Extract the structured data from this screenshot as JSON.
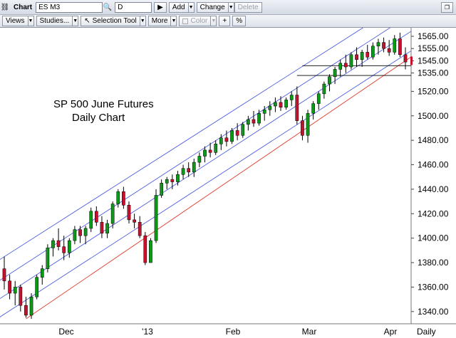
{
  "toolbar": {
    "chart_label": "Chart",
    "symbol": "ES M3",
    "period": "D",
    "add_label": "Add",
    "change_label": "Change",
    "delete_label": "Delete",
    "views_label": "Views",
    "studies_label": "Studies...",
    "selection_tool_label": "Selection Tool",
    "more_label": "More",
    "color_label": "Color",
    "plus_label": "+",
    "percent_label": "%"
  },
  "chart_data": {
    "type": "candlestick",
    "annotation": [
      "SP 500 June Futures",
      "Daily Chart"
    ],
    "period_label": "Daily",
    "x_labels": [
      "Dec",
      "'13",
      "Feb",
      "Mar",
      "Apr"
    ],
    "y_ticks": [
      1340,
      1360,
      1380,
      1400,
      1420,
      1440,
      1460,
      1480,
      1500,
      1520
    ],
    "y_ticks_fine": [
      1535,
      1545,
      1555,
      1565
    ],
    "ylim": [
      1330,
      1572
    ],
    "price_marker": 1545,
    "colors": {
      "up": "#0a9b16",
      "down": "#c8102e",
      "channel": "#3b4de0",
      "support": "#e03a2a",
      "resistance": "#000000"
    },
    "ohlc": [
      [
        1375,
        1385,
        1358,
        1365
      ],
      [
        1365,
        1370,
        1350,
        1355
      ],
      [
        1355,
        1365,
        1345,
        1360
      ],
      [
        1360,
        1362,
        1340,
        1345
      ],
      [
        1345,
        1352,
        1335,
        1337
      ],
      [
        1337,
        1355,
        1334,
        1352
      ],
      [
        1352,
        1370,
        1350,
        1368
      ],
      [
        1368,
        1378,
        1362,
        1375
      ],
      [
        1375,
        1395,
        1372,
        1392
      ],
      [
        1392,
        1400,
        1385,
        1398
      ],
      [
        1398,
        1408,
        1390,
        1393
      ],
      [
        1393,
        1402,
        1382,
        1388
      ],
      [
        1388,
        1400,
        1384,
        1398
      ],
      [
        1398,
        1410,
        1395,
        1407
      ],
      [
        1407,
        1410,
        1396,
        1402
      ],
      [
        1402,
        1410,
        1395,
        1408
      ],
      [
        1408,
        1425,
        1405,
        1422
      ],
      [
        1422,
        1426,
        1410,
        1413
      ],
      [
        1413,
        1418,
        1400,
        1404
      ],
      [
        1404,
        1415,
        1400,
        1412
      ],
      [
        1412,
        1430,
        1408,
        1428
      ],
      [
        1428,
        1440,
        1425,
        1438
      ],
      [
        1438,
        1442,
        1424,
        1427
      ],
      [
        1427,
        1430,
        1412,
        1415
      ],
      [
        1415,
        1420,
        1408,
        1413
      ],
      [
        1413,
        1418,
        1400,
        1402
      ],
      [
        1402,
        1405,
        1378,
        1380
      ],
      [
        1380,
        1400,
        1380,
        1398
      ],
      [
        1398,
        1440,
        1396,
        1435
      ],
      [
        1435,
        1448,
        1433,
        1445
      ],
      [
        1445,
        1450,
        1440,
        1448
      ],
      [
        1448,
        1452,
        1440,
        1446
      ],
      [
        1446,
        1455,
        1443,
        1452
      ],
      [
        1452,
        1460,
        1448,
        1457
      ],
      [
        1457,
        1462,
        1450,
        1454
      ],
      [
        1454,
        1465,
        1450,
        1462
      ],
      [
        1462,
        1470,
        1458,
        1467
      ],
      [
        1467,
        1475,
        1462,
        1472
      ],
      [
        1472,
        1478,
        1466,
        1470
      ],
      [
        1470,
        1480,
        1468,
        1477
      ],
      [
        1477,
        1485,
        1472,
        1482
      ],
      [
        1482,
        1488,
        1475,
        1479
      ],
      [
        1479,
        1490,
        1477,
        1488
      ],
      [
        1488,
        1494,
        1480,
        1484
      ],
      [
        1484,
        1495,
        1482,
        1493
      ],
      [
        1493,
        1500,
        1488,
        1497
      ],
      [
        1497,
        1504,
        1491,
        1494
      ],
      [
        1494,
        1505,
        1492,
        1502
      ],
      [
        1502,
        1508,
        1496,
        1505
      ],
      [
        1505,
        1512,
        1500,
        1508
      ],
      [
        1508,
        1515,
        1503,
        1511
      ],
      [
        1511,
        1516,
        1504,
        1507
      ],
      [
        1507,
        1515,
        1505,
        1513
      ],
      [
        1513,
        1520,
        1508,
        1517
      ],
      [
        1517,
        1524,
        1493,
        1496
      ],
      [
        1496,
        1500,
        1480,
        1484
      ],
      [
        1484,
        1505,
        1478,
        1502
      ],
      [
        1502,
        1512,
        1497,
        1510
      ],
      [
        1510,
        1520,
        1505,
        1518
      ],
      [
        1518,
        1528,
        1514,
        1526
      ],
      [
        1526,
        1534,
        1520,
        1532
      ],
      [
        1532,
        1540,
        1526,
        1538
      ],
      [
        1538,
        1546,
        1532,
        1543
      ],
      [
        1543,
        1550,
        1535,
        1540
      ],
      [
        1540,
        1552,
        1538,
        1550
      ],
      [
        1550,
        1556,
        1540,
        1546
      ],
      [
        1546,
        1554,
        1540,
        1552
      ],
      [
        1552,
        1558,
        1546,
        1548
      ],
      [
        1548,
        1560,
        1546,
        1557
      ],
      [
        1557,
        1563,
        1550,
        1560
      ],
      [
        1560,
        1564,
        1552,
        1555
      ],
      [
        1555,
        1562,
        1549,
        1552
      ],
      [
        1552,
        1566,
        1550,
        1563
      ],
      [
        1563,
        1568,
        1548,
        1550
      ],
      [
        1550,
        1556,
        1538,
        1544
      ]
    ]
  }
}
